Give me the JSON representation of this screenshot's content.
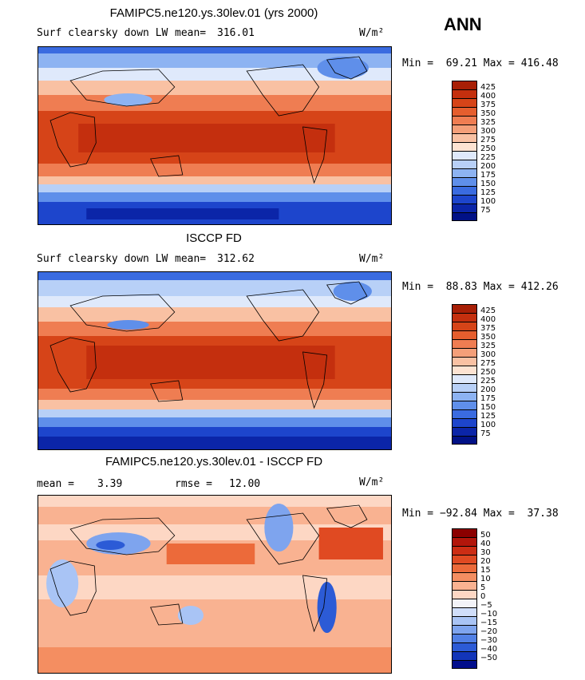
{
  "season": "ANN",
  "units": "W/m²",
  "panels": [
    {
      "title": "FAMIPC5.ne120.ys.30lev.01 (yrs 2000)",
      "variable": "Surf clearsky down LW",
      "stat1_label": "mean=",
      "stat1_value": "316.01",
      "minmax": "Min =  69.21 Max = 416.48",
      "levels": [
        "425",
        "400",
        "375",
        "350",
        "325",
        "300",
        "275",
        "250",
        "225",
        "200",
        "175",
        "150",
        "125",
        "100",
        "75"
      ],
      "colors": [
        "#a81f06",
        "#c42f0e",
        "#d64418",
        "#e55e2e",
        "#ef7d52",
        "#f49f79",
        "#f9c1a3",
        "#fde3d2",
        "#dfe9fb",
        "#b8d0f7",
        "#8db3f2",
        "#5f8fea",
        "#3a6be0",
        "#1d45cc",
        "#0b25a8",
        "#011186"
      ]
    },
    {
      "title": "ISCCP FD",
      "variable": "Surf clearsky down LW",
      "stat1_label": "mean=",
      "stat1_value": "312.62",
      "minmax": "Min =  88.83 Max = 412.26",
      "levels": [
        "425",
        "400",
        "375",
        "350",
        "325",
        "300",
        "275",
        "250",
        "225",
        "200",
        "175",
        "150",
        "125",
        "100",
        "75"
      ],
      "colors": [
        "#a81f06",
        "#c42f0e",
        "#d64418",
        "#e55e2e",
        "#ef7d52",
        "#f49f79",
        "#f9c1a3",
        "#fde3d2",
        "#dfe9fb",
        "#b8d0f7",
        "#8db3f2",
        "#5f8fea",
        "#3a6be0",
        "#1d45cc",
        "#0b25a8",
        "#011186"
      ]
    },
    {
      "title": "FAMIPC5.ne120.ys.30lev.01 - ISCCP FD",
      "variable": "",
      "stat1_label": "mean =",
      "stat1_value": "3.39",
      "stat2_label": "rmse =",
      "stat2_value": "12.00",
      "minmax": "Min = −92.84 Max =  37.38",
      "levels": [
        "50",
        "40",
        "30",
        "20",
        "15",
        "10",
        "5",
        "0",
        "−5",
        "−10",
        "−15",
        "−20",
        "−30",
        "−40",
        "−50"
      ],
      "colors": [
        "#8b0000",
        "#b2160b",
        "#cc2d14",
        "#e04a22",
        "#ec6a3a",
        "#f48e61",
        "#f9b291",
        "#fdd7c4",
        "#f3f3f8",
        "#d0defa",
        "#a9c4f5",
        "#7ea4ee",
        "#5180e5",
        "#2c5bd6",
        "#1235b9",
        "#020e8c"
      ]
    }
  ]
}
